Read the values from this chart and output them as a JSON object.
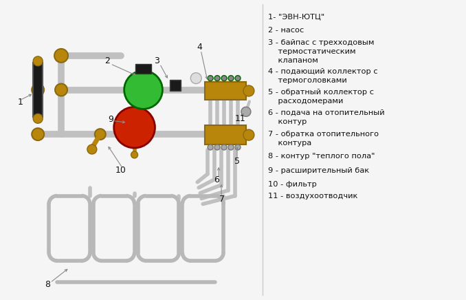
{
  "background_color": "#f5f5f5",
  "pipe_color": "#c0c0c0",
  "pipe_lw": 7,
  "pipe_lw_thin": 4,
  "brass_color": "#b8860b",
  "brass_dark": "#8B6914",
  "green_color": "#33bb33",
  "red_color": "#cc2200",
  "black_color": "#1a1a1a",
  "gray_color": "#888888",
  "label_color": "#111111",
  "ann_color": "#888888",
  "legend_texts": [
    "1- \"ЭВН-ЮТЦ\"",
    "2 - насос",
    "3 - байпас с трехходовым\n    термостатическим\n    клапаном",
    "4 - подающий коллектор с\n    термоголовками",
    "5 - обратный коллектор с\n    расходомерами",
    "6 - подача на отопительный\n    контур",
    "7 - обратка отопительного\n    контура",
    "8 - контур \"теплого пола\"",
    "9 - расширительный бак",
    "10 - фильтр",
    "11 - воздухоотводчик"
  ],
  "figsize": [
    6.78,
    4.36
  ],
  "dpi": 100
}
